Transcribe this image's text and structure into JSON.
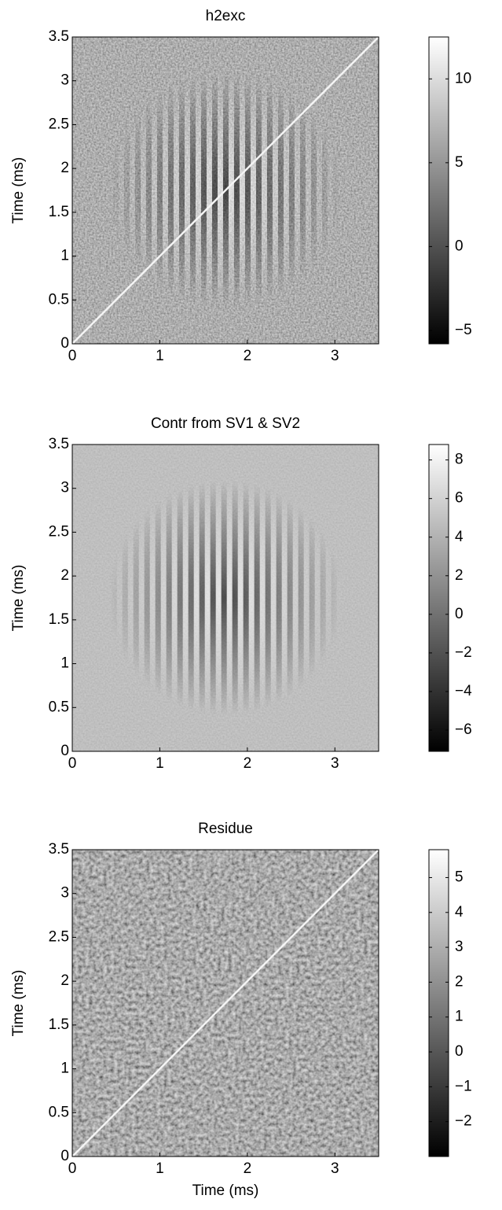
{
  "chart_data": [
    {
      "type": "heatmap",
      "title": "h2exc",
      "ylabel": "Time (ms)",
      "xlim": [
        0,
        3.5
      ],
      "ylim": [
        0,
        3.5
      ],
      "xticks": [
        0,
        1,
        2,
        3
      ],
      "yticks": [
        0,
        0.5,
        1,
        1.5,
        2,
        2.5,
        3,
        3.5
      ],
      "clim": [
        -5.8,
        12.5
      ],
      "cticks": [
        -5,
        0,
        5,
        10
      ]
    },
    {
      "type": "heatmap",
      "title": "Contr from SV1 & SV2",
      "ylabel": "Time (ms)",
      "xlim": [
        0,
        3.5
      ],
      "ylim": [
        0,
        3.5
      ],
      "xticks": [
        0,
        1,
        2,
        3
      ],
      "yticks": [
        0,
        0.5,
        1,
        1.5,
        2,
        2.5,
        3,
        3.5
      ],
      "clim": [
        -7.1,
        8.8
      ],
      "cticks": [
        -6,
        -4,
        -2,
        0,
        2,
        4,
        6,
        8
      ]
    },
    {
      "type": "heatmap",
      "title": "Residue",
      "ylabel": "Time (ms)",
      "xlabel": "Time (ms)",
      "xlim": [
        0,
        3.5
      ],
      "ylim": [
        0,
        3.5
      ],
      "xticks": [
        0,
        1,
        2,
        3
      ],
      "yticks": [
        0,
        0.5,
        1,
        1.5,
        2,
        2.5,
        3,
        3.5
      ],
      "clim": [
        -3.0,
        5.8
      ],
      "cticks": [
        -2,
        -1,
        0,
        1,
        2,
        3,
        4,
        5
      ]
    }
  ]
}
